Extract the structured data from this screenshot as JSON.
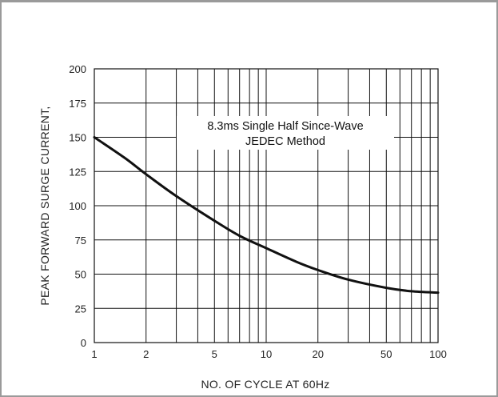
{
  "chart_data": {
    "type": "line",
    "title": "",
    "xlabel": "NO. OF CYCLE AT 60Hz",
    "ylabel": "PEAK FORWARD SURGE CURRENT,",
    "x_scale": "log",
    "xlim": [
      1,
      100
    ],
    "ylim": [
      0,
      200
    ],
    "x_ticks": [
      1,
      2,
      5,
      10,
      20,
      50,
      100
    ],
    "x_tick_labels": [
      "1",
      "2",
      "5",
      "10",
      "20",
      "50",
      "100"
    ],
    "y_ticks": [
      0,
      25,
      50,
      75,
      100,
      125,
      150,
      175,
      200
    ],
    "y_tick_labels": [
      "0",
      "25",
      "50",
      "75",
      "100",
      "125",
      "150",
      "175",
      "200"
    ],
    "grid": true,
    "annotation": {
      "lines": [
        "8.3ms Single Half Since-Wave",
        "JEDEC Method"
      ]
    },
    "series": [
      {
        "x": [
          1,
          1.5,
          2,
          3,
          5,
          7,
          10,
          15,
          20,
          30,
          50,
          70,
          100
        ],
        "y": [
          150,
          135,
          123,
          107,
          89,
          78,
          69,
          59,
          53,
          46,
          40,
          37.5,
          36.5
        ]
      }
    ]
  },
  "colors": {
    "curve": "#111111",
    "grid": "#111111",
    "frame": "#9a9a9a",
    "background": "#ffffff"
  }
}
